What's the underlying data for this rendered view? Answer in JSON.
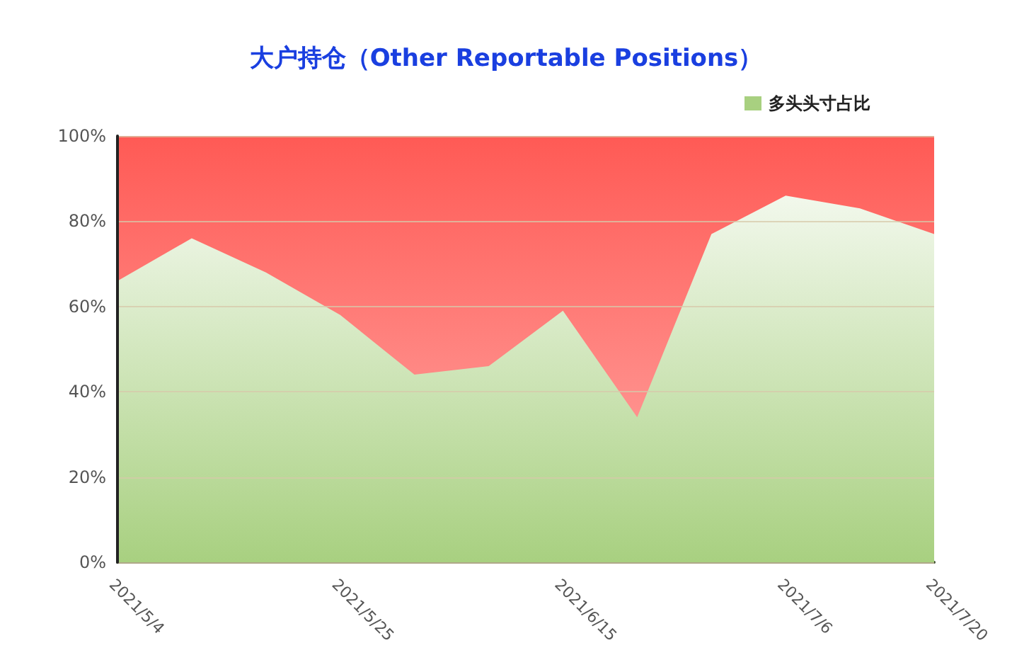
{
  "chart_data": {
    "type": "area",
    "title": "大户持仓（Other Reportable Positions）",
    "categories": [
      "2021/5/4",
      null,
      null,
      "2021/5/25",
      null,
      null,
      "2021/6/15",
      null,
      null,
      "2021/7/6",
      null,
      "2021/7/20"
    ],
    "series": [
      {
        "name": "多头头寸占比",
        "color": "#a8d080",
        "values": [
          66,
          76,
          68,
          58,
          44,
          46,
          59,
          34,
          77,
          86,
          83,
          77
        ]
      }
    ],
    "ylim": [
      0,
      100
    ],
    "yticks": [
      {
        "value": 0,
        "label": "0%"
      },
      {
        "value": 20,
        "label": "20%"
      },
      {
        "value": 40,
        "label": "40%"
      },
      {
        "value": 60,
        "label": "60%"
      },
      {
        "value": 80,
        "label": "80%"
      },
      {
        "value": 100,
        "label": "100%"
      }
    ],
    "bands": [
      {
        "axis": "y",
        "from": 0,
        "to": 100,
        "color": "#ff5a55"
      }
    ],
    "grid": "y",
    "legend": "top right",
    "marker": "none"
  }
}
